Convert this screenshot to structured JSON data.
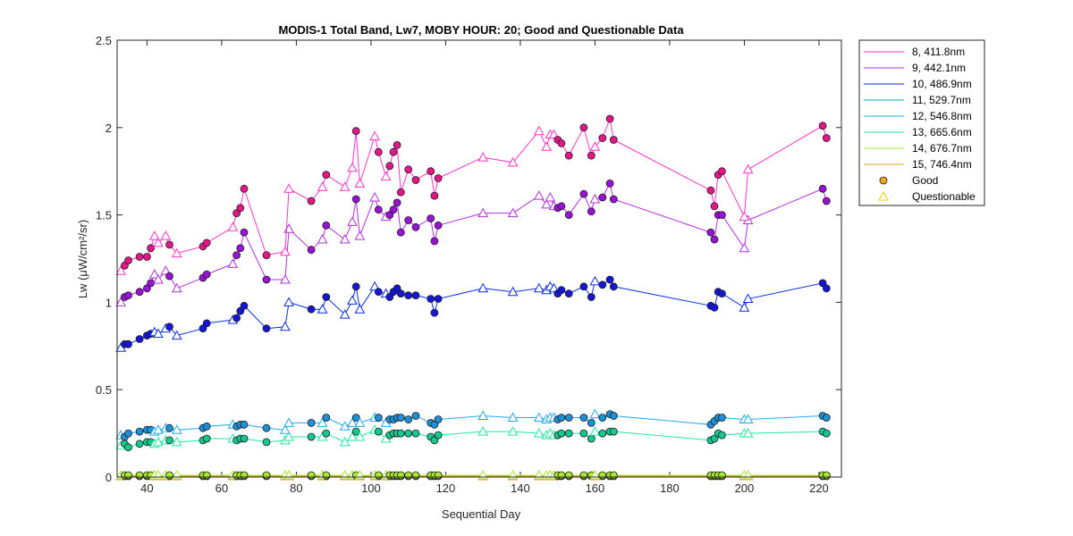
{
  "chart_data": {
    "type": "line",
    "title": "MODIS-1 Total Band,  Lw7, MOBY HOUR: 20;  Good and Questionable Data",
    "xlabel": "Sequential Day",
    "ylabel": "Lw (μW/cm²/sr)",
    "xlim": [
      32,
      226
    ],
    "ylim": [
      0,
      2.5
    ],
    "xticks": [
      40,
      60,
      80,
      100,
      120,
      140,
      160,
      180,
      200,
      220
    ],
    "xtick_labels": [
      "40",
      "60",
      "80",
      "100",
      "120",
      "140",
      "160",
      "180",
      "200",
      "220"
    ],
    "yticks": [
      0,
      0.5,
      1,
      1.5,
      2,
      2.5
    ],
    "ytick_labels": [
      "0",
      "0.5",
      "1",
      "1.5",
      "2",
      "2.5"
    ],
    "legend_position": "outside-top-right",
    "legend_markers": [
      {
        "label": "Good",
        "marker": "circle",
        "color": "#f5a623"
      },
      {
        "label": "Questionable",
        "marker": "triangle",
        "color": "#f0d000"
      }
    ],
    "x": [
      33,
      34,
      35,
      38,
      40,
      41,
      42,
      43,
      45,
      46,
      48,
      55,
      56,
      63,
      64,
      65,
      66,
      72,
      77,
      78,
      84,
      87,
      88,
      93,
      95,
      96,
      97,
      101,
      102,
      104,
      105,
      106,
      107,
      108,
      110,
      112,
      116,
      117,
      118,
      130,
      138,
      145,
      147,
      148,
      149,
      150,
      151,
      153,
      157,
      159,
      160,
      162,
      164,
      165,
      191,
      192,
      193,
      194,
      200,
      201,
      221,
      222
    ],
    "flags": [
      "Q",
      "G",
      "G",
      "G",
      "G",
      "G",
      "Q",
      "Q",
      "Q",
      "G",
      "Q",
      "G",
      "G",
      "Q",
      "G",
      "G",
      "G",
      "G",
      "Q",
      "Q",
      "G",
      "Q",
      "G",
      "Q",
      "Q",
      "G",
      "Q",
      "Q",
      "G",
      "Q",
      "G",
      "G",
      "G",
      "G",
      "G",
      "G",
      "G",
      "G",
      "G",
      "Q",
      "Q",
      "Q",
      "Q",
      "Q",
      "Q",
      "G",
      "G",
      "G",
      "G",
      "G",
      "Q",
      "G",
      "G",
      "G",
      "G",
      "G",
      "G",
      "G",
      "Q",
      "Q",
      "G",
      "G"
    ],
    "series": [
      {
        "name": "8, 411.8nm",
        "color": "#ff33cc",
        "fill": "#e6158a",
        "values": [
          1.18,
          1.21,
          1.24,
          1.26,
          1.26,
          1.31,
          1.38,
          1.34,
          1.38,
          1.33,
          1.28,
          1.32,
          1.34,
          1.43,
          1.51,
          1.54,
          1.65,
          1.27,
          1.29,
          1.65,
          1.58,
          1.66,
          1.73,
          1.66,
          1.77,
          1.98,
          1.68,
          1.95,
          1.86,
          1.72,
          1.78,
          1.86,
          1.9,
          1.63,
          1.76,
          1.7,
          1.75,
          1.61,
          1.71,
          1.83,
          1.8,
          1.98,
          1.89,
          1.96,
          1.96,
          1.93,
          1.91,
          1.84,
          2.0,
          1.84,
          1.89,
          1.94,
          2.05,
          1.93,
          1.64,
          1.55,
          1.73,
          1.75,
          1.49,
          1.76,
          2.01,
          1.94
        ]
      },
      {
        "name": "9, 442.1nm",
        "color": "#b030e0",
        "fill": "#9a12d8",
        "values": [
          1.0,
          1.03,
          1.04,
          1.06,
          1.08,
          1.11,
          1.16,
          1.13,
          1.18,
          1.15,
          1.08,
          1.14,
          1.16,
          1.22,
          1.27,
          1.31,
          1.4,
          1.13,
          1.13,
          1.42,
          1.3,
          1.36,
          1.44,
          1.36,
          1.46,
          1.59,
          1.38,
          1.6,
          1.53,
          1.49,
          1.5,
          1.53,
          1.57,
          1.4,
          1.47,
          1.43,
          1.48,
          1.35,
          1.44,
          1.51,
          1.51,
          1.61,
          1.56,
          1.6,
          1.55,
          1.54,
          1.55,
          1.5,
          1.62,
          1.52,
          1.59,
          1.6,
          1.68,
          1.59,
          1.4,
          1.36,
          1.5,
          1.5,
          1.31,
          1.47,
          1.65,
          1.58
        ]
      },
      {
        "name": "10, 486.9nm",
        "color": "#0a2ee0",
        "fill": "#1616d8",
        "values": [
          0.74,
          0.76,
          0.76,
          0.79,
          0.81,
          0.82,
          0.83,
          0.82,
          0.85,
          0.86,
          0.81,
          0.85,
          0.88,
          0.9,
          0.91,
          0.95,
          0.98,
          0.85,
          0.86,
          1.0,
          0.96,
          0.96,
          1.03,
          0.93,
          1.01,
          1.09,
          0.96,
          1.09,
          1.06,
          1.05,
          1.03,
          1.06,
          1.08,
          1.05,
          1.04,
          1.04,
          1.02,
          0.94,
          1.02,
          1.08,
          1.06,
          1.08,
          1.07,
          1.09,
          1.08,
          1.05,
          1.07,
          1.05,
          1.09,
          1.03,
          1.12,
          1.1,
          1.13,
          1.09,
          0.98,
          0.97,
          1.06,
          1.05,
          0.97,
          1.02,
          1.11,
          1.08
        ]
      },
      {
        "name": "11, 529.7nm",
        "color": "#00b0c0",
        "fill": "#00b0c0",
        "hidden": true,
        "values": [
          0.012,
          0.012,
          0.012,
          0.012,
          0.012,
          0.012,
          0.012,
          0.012,
          0.012,
          0.012,
          0.012,
          0.012,
          0.012,
          0.012,
          0.012,
          0.012,
          0.012,
          0.012,
          0.012,
          0.012,
          0.012,
          0.012,
          0.012,
          0.012,
          0.012,
          0.012,
          0.012,
          0.012,
          0.012,
          0.012,
          0.012,
          0.012,
          0.012,
          0.012,
          0.012,
          0.012,
          0.012,
          0.012,
          0.012,
          0.012,
          0.012,
          0.012,
          0.012,
          0.012,
          0.012,
          0.012,
          0.012,
          0.012,
          0.012,
          0.012,
          0.012,
          0.012,
          0.012,
          0.012,
          0.012,
          0.012,
          0.012,
          0.012,
          0.012,
          0.012,
          0.012,
          0.012
        ]
      },
      {
        "name": "12, 546.8nm",
        "color": "#22aaee",
        "fill": "#1e90d8",
        "values": [
          0.24,
          0.23,
          0.25,
          0.26,
          0.27,
          0.27,
          0.26,
          0.27,
          0.28,
          0.28,
          0.27,
          0.28,
          0.29,
          0.3,
          0.29,
          0.3,
          0.3,
          0.28,
          0.27,
          0.31,
          0.31,
          0.31,
          0.34,
          0.29,
          0.31,
          0.34,
          0.31,
          0.34,
          0.34,
          0.31,
          0.33,
          0.33,
          0.34,
          0.34,
          0.33,
          0.35,
          0.31,
          0.3,
          0.33,
          0.35,
          0.34,
          0.34,
          0.33,
          0.34,
          0.34,
          0.33,
          0.34,
          0.34,
          0.34,
          0.31,
          0.36,
          0.34,
          0.36,
          0.35,
          0.3,
          0.32,
          0.34,
          0.34,
          0.33,
          0.33,
          0.35,
          0.34
        ]
      },
      {
        "name": "13, 665.6nm",
        "color": "#20e8a0",
        "fill": "#14c890",
        "values": [
          0.18,
          0.19,
          0.17,
          0.19,
          0.2,
          0.2,
          0.19,
          0.2,
          0.21,
          0.21,
          0.2,
          0.21,
          0.22,
          0.22,
          0.21,
          0.22,
          0.22,
          0.2,
          0.21,
          0.23,
          0.23,
          0.23,
          0.25,
          0.2,
          0.23,
          0.26,
          0.23,
          0.27,
          0.26,
          0.22,
          0.24,
          0.25,
          0.25,
          0.25,
          0.25,
          0.25,
          0.23,
          0.21,
          0.24,
          0.26,
          0.26,
          0.25,
          0.24,
          0.25,
          0.24,
          0.24,
          0.25,
          0.25,
          0.25,
          0.22,
          0.26,
          0.25,
          0.26,
          0.26,
          0.21,
          0.22,
          0.25,
          0.24,
          0.25,
          0.25,
          0.26,
          0.25
        ]
      },
      {
        "name": "14, 676.7nm",
        "color": "#a8e830",
        "fill": "#a8e830",
        "values": [
          0.01,
          0.01,
          0.01,
          0.01,
          0.01,
          0.01,
          0.01,
          0.01,
          0.01,
          0.01,
          0.01,
          0.01,
          0.01,
          0.01,
          0.01,
          0.01,
          0.01,
          0.01,
          0.01,
          0.01,
          0.01,
          0.01,
          0.01,
          0.01,
          0.01,
          0.01,
          0.01,
          0.01,
          0.01,
          0.01,
          0.01,
          0.01,
          0.01,
          0.01,
          0.01,
          0.01,
          0.01,
          0.01,
          0.01,
          0.01,
          0.01,
          0.01,
          0.01,
          0.01,
          0.01,
          0.01,
          0.01,
          0.01,
          0.01,
          0.01,
          0.01,
          0.01,
          0.01,
          0.01,
          0.01,
          0.01,
          0.01,
          0.01,
          0.01,
          0.01,
          0.01,
          0.01
        ]
      },
      {
        "name": "15, 746.4nm",
        "color": "#e0a020",
        "fill": "#f5a623",
        "values": [
          0.005,
          0.005,
          0.005,
          0.005,
          0.005,
          0.005,
          0.005,
          0.005,
          0.005,
          0.005,
          0.005,
          0.005,
          0.005,
          0.005,
          0.005,
          0.005,
          0.005,
          0.005,
          0.005,
          0.005,
          0.005,
          0.005,
          0.005,
          0.005,
          0.005,
          0.005,
          0.005,
          0.005,
          0.005,
          0.005,
          0.005,
          0.005,
          0.005,
          0.005,
          0.005,
          0.005,
          0.005,
          0.005,
          0.005,
          0.005,
          0.005,
          0.005,
          0.005,
          0.005,
          0.005,
          0.005,
          0.005,
          0.005,
          0.005,
          0.005,
          0.005,
          0.005,
          0.005,
          0.005,
          0.005,
          0.005,
          0.005,
          0.005,
          0.005,
          0.005,
          0.005,
          0.005
        ]
      }
    ]
  }
}
